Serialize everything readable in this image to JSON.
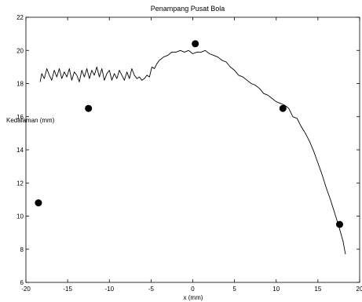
{
  "chart_data": {
    "type": "scatter",
    "title": "Penampang Pusat Bola",
    "xlabel": "x (mm)",
    "ylabel": "Kedalaman (mm)",
    "xlim": [
      -20,
      20
    ],
    "ylim": [
      6,
      22
    ],
    "xticks": [
      -20,
      -15,
      -10,
      -5,
      0,
      5,
      10,
      15,
      20
    ],
    "yticks": [
      6,
      8,
      10,
      12,
      14,
      16,
      18,
      20,
      22
    ],
    "grid": false,
    "colors": {
      "line": "#000000",
      "points": "#000000",
      "axes": "#000000"
    },
    "series": [
      {
        "type": "line",
        "x": [
          -18.3,
          -18.1,
          -17.8,
          -17.5,
          -17.2,
          -16.9,
          -16.6,
          -16.3,
          -16.0,
          -15.7,
          -15.4,
          -15.1,
          -14.8,
          -14.5,
          -14.2,
          -13.9,
          -13.6,
          -13.3,
          -13.0,
          -12.7,
          -12.4,
          -12.1,
          -11.8,
          -11.5,
          -11.2,
          -10.9,
          -10.6,
          -10.3,
          -10.0,
          -9.7,
          -9.4,
          -9.1,
          -8.8,
          -8.5,
          -8.2,
          -7.9,
          -7.6,
          -7.3,
          -7.0,
          -6.7,
          -6.4,
          -6.1,
          -5.8,
          -5.5,
          -5.2,
          -4.9,
          -4.6,
          -4.3,
          -4.0,
          -3.5,
          -3.0,
          -2.5,
          -2.0,
          -1.5,
          -1.0,
          -0.5,
          0.0,
          0.5,
          1.0,
          1.5,
          2.0,
          2.5,
          3.0,
          3.5,
          4.0,
          4.5,
          5.0,
          5.5,
          6.0,
          6.5,
          7.0,
          7.5,
          8.0,
          8.5,
          9.0,
          9.5,
          10.0,
          10.5,
          11.0,
          11.5,
          12.0,
          12.5,
          13.0,
          13.5,
          14.0,
          14.5,
          15.0,
          15.5,
          16.0,
          16.5,
          17.0,
          17.5,
          18.0,
          18.3
        ],
        "y": [
          18.1,
          18.6,
          18.3,
          18.9,
          18.5,
          18.2,
          18.8,
          18.4,
          18.9,
          18.3,
          18.7,
          18.4,
          18.9,
          18.2,
          18.7,
          18.5,
          18.1,
          18.8,
          18.4,
          18.9,
          18.3,
          18.8,
          18.5,
          19.0,
          18.4,
          18.9,
          18.2,
          18.6,
          18.8,
          18.2,
          18.6,
          18.3,
          18.8,
          18.5,
          18.2,
          18.7,
          18.3,
          18.9,
          18.5,
          18.3,
          18.4,
          18.2,
          18.3,
          18.5,
          18.4,
          19.0,
          18.9,
          19.2,
          19.4,
          19.6,
          19.7,
          19.9,
          19.9,
          20.0,
          19.9,
          20.0,
          19.8,
          19.9,
          19.9,
          20.0,
          19.8,
          19.7,
          19.6,
          19.4,
          19.3,
          19.0,
          18.8,
          18.5,
          18.4,
          18.2,
          18.0,
          17.9,
          17.7,
          17.4,
          17.3,
          17.1,
          16.9,
          16.8,
          16.7,
          16.5,
          16.0,
          15.9,
          15.4,
          15.0,
          14.5,
          13.9,
          13.2,
          12.5,
          11.7,
          11.0,
          10.2,
          9.4,
          8.5,
          7.7
        ]
      },
      {
        "type": "scatter",
        "x": [
          -18.5,
          -12.5,
          0.3,
          10.8,
          17.6
        ],
        "y": [
          10.8,
          16.5,
          20.4,
          16.5,
          9.5
        ]
      }
    ]
  }
}
